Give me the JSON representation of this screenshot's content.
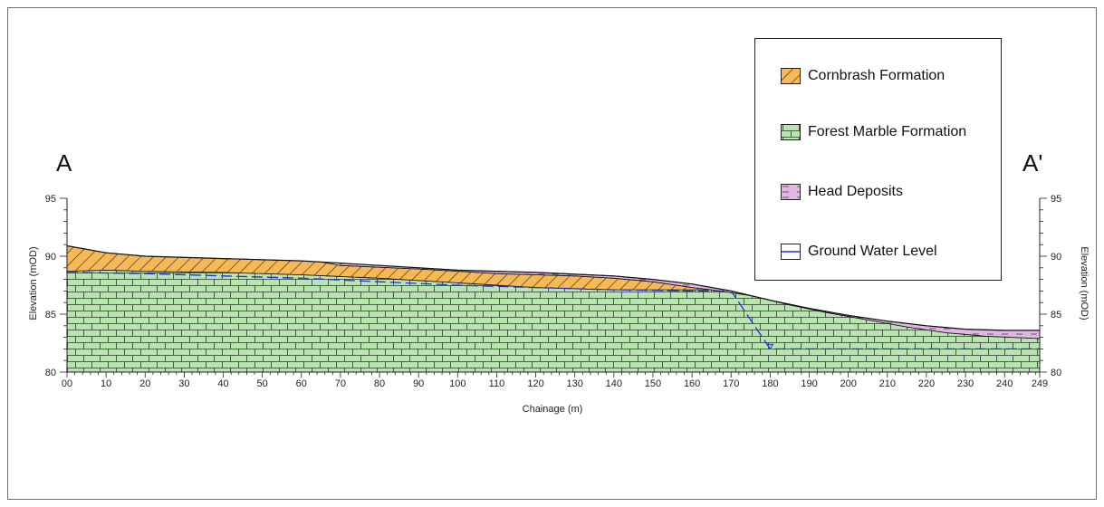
{
  "section": {
    "start_label": "A",
    "end_label": "A'",
    "x_axis_title": "Chainage (m)",
    "y_axis_title_left": "Elevation (mOD)",
    "y_axis_title_right": "Elevation (mOD)"
  },
  "legend": {
    "items": [
      {
        "label": "Cornbrash Formation",
        "key": "cornbrash"
      },
      {
        "label": "Forest Marble Formation",
        "key": "forest_marble"
      },
      {
        "label": "Head Deposits",
        "key": "head"
      },
      {
        "label": "Ground Water Level",
        "key": "gwl"
      }
    ]
  },
  "colors": {
    "cornbrash": "#f7b955",
    "forest_marble": "#b8e4b0",
    "head": "#e2b6e2",
    "groundwater": "#2233cc",
    "outline": "#111111"
  },
  "chart_data": {
    "type": "area",
    "x_ticks": [
      "00",
      "10",
      "20",
      "30",
      "40",
      "50",
      "60",
      "70",
      "80",
      "90",
      "100",
      "110",
      "120",
      "130",
      "140",
      "150",
      "160",
      "170",
      "180",
      "190",
      "200",
      "210",
      "220",
      "230",
      "240",
      "249"
    ],
    "y_ticks": [
      80,
      85,
      90,
      95
    ],
    "xlim": [
      0,
      249
    ],
    "ylim": [
      80,
      95
    ],
    "ground_surface": [
      [
        0,
        90.9
      ],
      [
        10,
        90.3
      ],
      [
        20,
        90.0
      ],
      [
        40,
        89.8
      ],
      [
        60,
        89.6
      ],
      [
        80,
        89.2
      ],
      [
        100,
        88.8
      ],
      [
        120,
        88.6
      ],
      [
        140,
        88.3
      ],
      [
        150,
        88.0
      ],
      [
        160,
        87.6
      ],
      [
        170,
        87.0
      ],
      [
        180,
        86.2
      ],
      [
        190,
        85.5
      ],
      [
        200,
        84.9
      ],
      [
        210,
        84.4
      ],
      [
        220,
        84.0
      ],
      [
        230,
        83.7
      ],
      [
        240,
        83.6
      ],
      [
        249,
        83.6
      ]
    ],
    "head_base": [
      [
        70,
        89.2
      ],
      [
        90,
        88.9
      ],
      [
        100,
        88.7
      ],
      [
        110,
        88.5
      ],
      [
        120,
        88.4
      ],
      [
        130,
        88.3
      ],
      [
        140,
        88.1
      ],
      [
        150,
        87.8
      ],
      [
        160,
        87.3
      ],
      [
        165,
        87.1
      ],
      [
        175,
        86.6
      ],
      [
        185,
        85.8
      ],
      [
        195,
        85.1
      ],
      [
        205,
        84.5
      ],
      [
        215,
        83.9
      ],
      [
        225,
        83.4
      ],
      [
        235,
        83.1
      ],
      [
        249,
        82.9
      ]
    ],
    "cornbrash_base": [
      [
        0,
        88.7
      ],
      [
        10,
        88.8
      ],
      [
        20,
        88.7
      ],
      [
        40,
        88.6
      ],
      [
        60,
        88.4
      ],
      [
        80,
        88.1
      ],
      [
        100,
        87.7
      ],
      [
        120,
        87.3
      ],
      [
        140,
        87.1
      ],
      [
        150,
        87.1
      ],
      [
        160,
        87.1
      ],
      [
        165,
        87.1
      ]
    ],
    "groundwater": [
      [
        0,
        88.6
      ],
      [
        20,
        88.5
      ],
      [
        40,
        88.3
      ],
      [
        60,
        88.1
      ],
      [
        80,
        87.8
      ],
      [
        100,
        87.5
      ],
      [
        120,
        87.3
      ],
      [
        140,
        87.1
      ],
      [
        160,
        87.0
      ],
      [
        170,
        87.0
      ],
      [
        180,
        82.0
      ],
      [
        200,
        82.0
      ],
      [
        220,
        82.0
      ],
      [
        240,
        82.0
      ],
      [
        249,
        82.0
      ]
    ]
  }
}
